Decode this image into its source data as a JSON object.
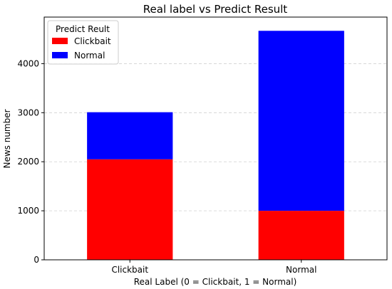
{
  "chart_data": {
    "type": "bar",
    "stacked": true,
    "title": "Real label vs Predict Result",
    "xlabel": "Real Label (0 = Clickbait, 1 = Normal)",
    "ylabel": "News number",
    "categories": [
      "Clickbait",
      "Normal"
    ],
    "series": [
      {
        "name": "Clickbait",
        "color": "#ff0000",
        "values": [
          2050,
          1000
        ]
      },
      {
        "name": "Normal",
        "color": "#0000ff",
        "values": [
          960,
          3670
        ]
      }
    ],
    "ylim": [
      0,
      4950
    ],
    "yticks": [
      0,
      1000,
      2000,
      3000,
      4000
    ],
    "ytick_labels": [
      "0",
      "1000",
      "2000",
      "3000",
      "4000"
    ],
    "grid": "y-dashed",
    "legend": {
      "title": "Predict Reult",
      "placement": "top-left"
    }
  }
}
